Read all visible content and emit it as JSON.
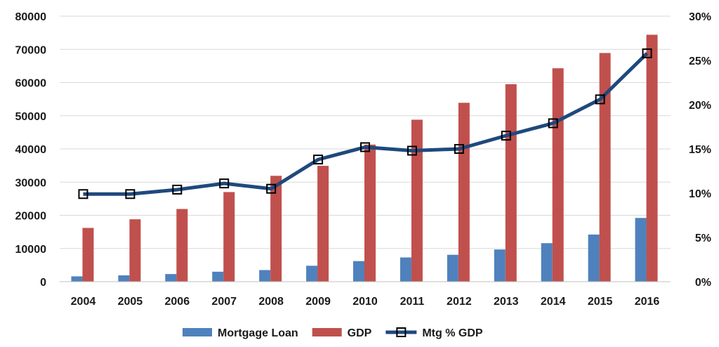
{
  "chart_data": {
    "type": "bar",
    "categories": [
      "2004",
      "2005",
      "2006",
      "2007",
      "2008",
      "2009",
      "2010",
      "2011",
      "2012",
      "2013",
      "2014",
      "2015",
      "2016"
    ],
    "series": [
      {
        "name": "Mortgage Loan",
        "type": "bar",
        "axis": "left",
        "color": "#4f81bd",
        "values": [
          1600,
          1900,
          2300,
          3000,
          3500,
          4800,
          6200,
          7300,
          8100,
          9700,
          11600,
          14200,
          19200
        ]
      },
      {
        "name": "GDP",
        "type": "bar",
        "axis": "left",
        "color": "#c0504d",
        "values": [
          16200,
          18800,
          21900,
          27000,
          31900,
          34900,
          41300,
          48800,
          53900,
          59500,
          64300,
          68900,
          74400
        ]
      },
      {
        "name": "Mtg % GDP",
        "type": "line",
        "axis": "right",
        "color": "#1f497d",
        "marker": "square",
        "values": [
          9.9,
          9.9,
          10.4,
          11.1,
          10.5,
          13.8,
          15.2,
          14.8,
          15.0,
          16.5,
          17.9,
          20.6,
          25.8
        ]
      }
    ],
    "y_left": {
      "ylim": [
        0,
        80000
      ],
      "ticks": [
        "0",
        "10000",
        "20000",
        "30000",
        "40000",
        "50000",
        "60000",
        "70000",
        "80000"
      ]
    },
    "y_right": {
      "ylim": [
        0,
        30
      ],
      "unit": "%",
      "ticks": [
        "0%",
        "5%",
        "10%",
        "15%",
        "20%",
        "25%",
        "30%"
      ]
    },
    "grid": "horizontal",
    "legend_position": "bottom-center",
    "title": "",
    "xlabel": "",
    "ylabel": ""
  }
}
